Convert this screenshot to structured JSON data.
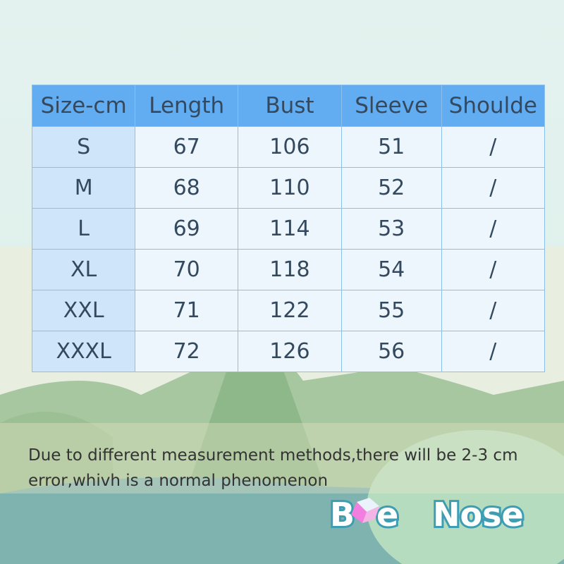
{
  "table": {
    "headers": [
      "Size-cm",
      "Length",
      "Bust",
      "Sleeve",
      "Shoulde"
    ],
    "rows": [
      [
        "S",
        "67",
        "106",
        "51",
        "/"
      ],
      [
        "M",
        "68",
        "110",
        "52",
        "/"
      ],
      [
        "L",
        "69",
        "114",
        "53",
        "/"
      ],
      [
        "XL",
        "70",
        "118",
        "54",
        "/"
      ],
      [
        "XXL",
        "71",
        "122",
        "55",
        "/"
      ],
      [
        "XXXL",
        "72",
        "126",
        "56",
        "/"
      ]
    ]
  },
  "note": "Due to different measurement methods,there will be 2-3 cm error,whivh is a normal phenomenon",
  "logo": {
    "text": "Blue Nose"
  },
  "colors": {
    "header": "#62acf1",
    "size_column": "#cfe5fa",
    "cell": "#eef6fd",
    "border": "#8dbfec"
  }
}
